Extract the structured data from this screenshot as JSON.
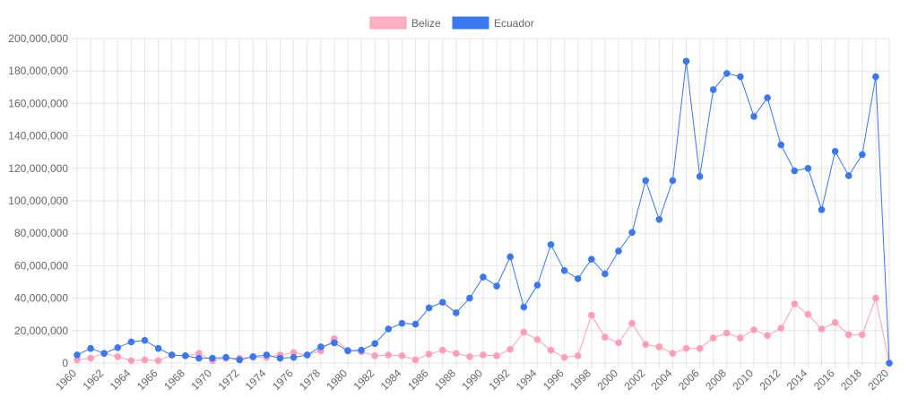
{
  "chart_data": {
    "type": "line",
    "title": "",
    "xlabel": "",
    "ylabel": "",
    "ylim": [
      0,
      200000000
    ],
    "y_ticks": [
      "0",
      "20,000,000",
      "40,000,000",
      "60,000,000",
      "80,000,000",
      "100,000,000",
      "120,000,000",
      "140,000,000",
      "160,000,000",
      "180,000,000",
      "200,000,000"
    ],
    "grid": true,
    "legend_position": "top",
    "x": [
      1960,
      1961,
      1962,
      1963,
      1964,
      1965,
      1966,
      1967,
      1968,
      1969,
      1970,
      1971,
      1972,
      1973,
      1974,
      1975,
      1976,
      1977,
      1978,
      1979,
      1980,
      1981,
      1982,
      1983,
      1984,
      1985,
      1986,
      1987,
      1988,
      1989,
      1990,
      1991,
      1992,
      1993,
      1994,
      1995,
      1996,
      1997,
      1998,
      1999,
      2000,
      2001,
      2002,
      2003,
      2004,
      2005,
      2006,
      2007,
      2008,
      2009,
      2010,
      2011,
      2012,
      2013,
      2014,
      2015,
      2016,
      2017,
      2018,
      2019,
      2020
    ],
    "x_tick_labels": [
      "1960",
      "1962",
      "1964",
      "1966",
      "1968",
      "1970",
      "1972",
      "1974",
      "1976",
      "1978",
      "1980",
      "1982",
      "1984",
      "1986",
      "1988",
      "1990",
      "1992",
      "1994",
      "1996",
      "1998",
      "2000",
      "2002",
      "2004",
      "2006",
      "2008",
      "2010",
      "2012",
      "2014",
      "2016",
      "2018",
      "2020"
    ],
    "series": [
      {
        "name": "Belize",
        "color": "#ff9eb6",
        "legend_fill": "#ffb1c3",
        "values": [
          2000000,
          3000000,
          6000000,
          4000000,
          1500000,
          2000000,
          1500000,
          5000000,
          4500000,
          6000000,
          1500000,
          3000000,
          3000000,
          3500000,
          3500000,
          5000000,
          6500000,
          5000000,
          7500000,
          15000000,
          8000000,
          7000000,
          4500000,
          5000000,
          4500000,
          2000000,
          5500000,
          8000000,
          6000000,
          4000000,
          5000000,
          4500000,
          8500000,
          19000000,
          14500000,
          8000000,
          3500000,
          4500000,
          29500000,
          16000000,
          12500000,
          24500000,
          11500000,
          10000000,
          6000000,
          9000000,
          9000000,
          15500000,
          18500000,
          15500000,
          20500000,
          17000000,
          21500000,
          36500000,
          30000000,
          21000000,
          25000000,
          17500000,
          17500000,
          40000000,
          0
        ]
      },
      {
        "name": "Ecuador",
        "color": "#3a78f2",
        "legend_fill": "#3a78f2",
        "values": [
          5000000,
          9000000,
          6000000,
          9500000,
          13000000,
          14000000,
          9000000,
          5000000,
          4500000,
          3000000,
          3000000,
          3500000,
          2000000,
          4000000,
          5000000,
          3000000,
          3500000,
          5000000,
          10000000,
          12500000,
          7500000,
          8000000,
          12000000,
          21000000,
          24500000,
          24000000,
          34000000,
          37500000,
          31000000,
          40000000,
          53000000,
          47500000,
          65500000,
          34500000,
          48000000,
          73000000,
          57000000,
          52000000,
          64000000,
          55000000,
          69000000,
          80500000,
          112500000,
          88500000,
          112500000,
          186000000,
          115000000,
          168500000,
          178500000,
          176500000,
          152000000,
          163500000,
          134500000,
          118500000,
          120000000,
          94500000,
          130500000,
          115500000,
          128500000,
          176500000,
          0
        ]
      }
    ]
  }
}
